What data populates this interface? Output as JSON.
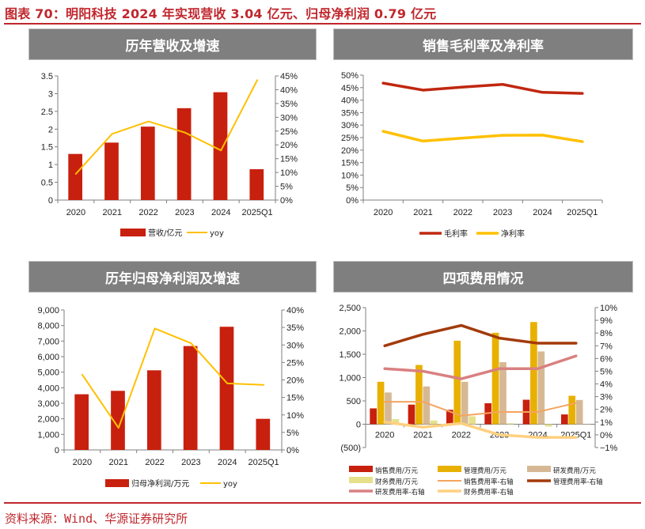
{
  "figure": {
    "title": "图表 70：明阳科技 2024 年实现营收 3.04 亿元、归母净利润 0.79 亿元",
    "source": "资料来源：Wind、华源证券研究所",
    "accent_color": "#c0272d",
    "panel_header_color": "#7f7f7f"
  },
  "panels": [
    {
      "title": "历年营收及增速"
    },
    {
      "title": "销售毛利率及净利率"
    },
    {
      "title": "历年归母净利润及增速"
    },
    {
      "title": "四项费用情况"
    }
  ],
  "chart_data": [
    {
      "type": "bar",
      "title": "历年营收及增速",
      "categories": [
        "2020",
        "2021",
        "2022",
        "2023",
        "2024",
        "2025Q1"
      ],
      "series": [
        {
          "name": "营收/亿元",
          "type": "bar",
          "axis": "left",
          "color": "#c8200e",
          "values": [
            1.3,
            1.62,
            2.07,
            2.59,
            3.04,
            0.87
          ]
        },
        {
          "name": "yoy",
          "type": "line",
          "axis": "right",
          "color": "#ffc000",
          "width": 2,
          "values": [
            0.095,
            0.24,
            0.285,
            0.245,
            0.18,
            0.435
          ]
        }
      ],
      "left_axis": {
        "min": 0,
        "max": 3.5,
        "step": 0.5,
        "ticks": [
          "0",
          "0.5",
          "1",
          "1.5",
          "2",
          "2.5",
          "3",
          "3.5"
        ]
      },
      "right_axis": {
        "min": 0,
        "max": 0.45,
        "step": 0.05,
        "ticks": [
          "0%",
          "5%",
          "10%",
          "15%",
          "20%",
          "25%",
          "30%",
          "35%",
          "40%",
          "45%"
        ]
      },
      "legend_position": "bottom"
    },
    {
      "type": "line",
      "title": "销售毛利率及净利率",
      "categories": [
        "2020",
        "2021",
        "2022",
        "2023",
        "2024",
        "2025Q1"
      ],
      "series": [
        {
          "name": "毛利率",
          "type": "line",
          "axis": "left",
          "color": "#c0270f",
          "width": 3.5,
          "values": [
            0.468,
            0.44,
            0.452,
            0.463,
            0.431,
            0.427
          ]
        },
        {
          "name": "净利率",
          "type": "line",
          "axis": "left",
          "color": "#ffc000",
          "width": 3.5,
          "values": [
            0.275,
            0.236,
            0.248,
            0.259,
            0.26,
            0.234
          ]
        }
      ],
      "left_axis": {
        "min": 0,
        "max": 0.5,
        "step": 0.05,
        "ticks": [
          "0%",
          "5%",
          "10%",
          "15%",
          "20%",
          "25%",
          "30%",
          "35%",
          "40%",
          "45%",
          "50%"
        ]
      },
      "legend_position": "bottom"
    },
    {
      "type": "bar",
      "title": "历年归母净利润及增速",
      "categories": [
        "2020",
        "2021",
        "2022",
        "2023",
        "2024",
        "2025Q1"
      ],
      "series": [
        {
          "name": "归母净利润/万元",
          "type": "bar",
          "axis": "left",
          "color": "#c8200e",
          "values": [
            3580,
            3800,
            5120,
            6680,
            7920,
            2000
          ]
        },
        {
          "name": "yoy",
          "type": "line",
          "axis": "right",
          "color": "#ffc000",
          "width": 2,
          "values": [
            0.215,
            0.063,
            0.347,
            0.305,
            0.19,
            0.186
          ]
        }
      ],
      "left_axis": {
        "min": 0,
        "max": 9000,
        "step": 1000,
        "ticks": [
          "0",
          "1,000",
          "2,000",
          "3,000",
          "4,000",
          "5,000",
          "6,000",
          "7,000",
          "8,000",
          "9,000"
        ]
      },
      "right_axis": {
        "min": 0,
        "max": 0.4,
        "step": 0.05,
        "ticks": [
          "0%",
          "5%",
          "10%",
          "15%",
          "20%",
          "25%",
          "30%",
          "35%",
          "40%"
        ]
      },
      "legend_position": "bottom"
    },
    {
      "type": "bar",
      "title": "四项费用情况",
      "categories": [
        "2020",
        "2021",
        "2022",
        "2023",
        "2024",
        "2025Q1"
      ],
      "series": [
        {
          "name": "销售费用/万元",
          "type": "bar",
          "axis": "left",
          "color": "#c8200e",
          "values": [
            340,
            420,
            310,
            450,
            525,
            210
          ]
        },
        {
          "name": "管理费用/万元",
          "type": "bar",
          "axis": "left",
          "color": "#e8b000",
          "values": [
            910,
            1270,
            1790,
            1960,
            2190,
            610
          ]
        },
        {
          "name": "研发费用/万元",
          "type": "bar",
          "axis": "left",
          "color": "#d6b994",
          "values": [
            680,
            810,
            910,
            1330,
            1560,
            520
          ]
        },
        {
          "name": "财务费用/万元",
          "type": "bar",
          "axis": "left",
          "color": "#e6e08a",
          "values": [
            110,
            80,
            170,
            20,
            -50,
            -5
          ]
        },
        {
          "name": "销售费用率-右轴",
          "type": "line",
          "axis": "right",
          "color": "#f4a460",
          "width": 2,
          "values": [
            0.026,
            0.026,
            0.015,
            0.018,
            0.018,
            0.025
          ]
        },
        {
          "name": "管理费用率-右轴",
          "type": "line",
          "axis": "right",
          "color": "#a33a0a",
          "width": 3.5,
          "values": [
            0.07,
            0.079,
            0.086,
            0.076,
            0.072,
            0.072
          ]
        },
        {
          "name": "研发费用率-右轴",
          "type": "line",
          "axis": "right",
          "color": "#d98080",
          "width": 3.5,
          "values": [
            0.052,
            0.05,
            0.044,
            0.052,
            0.052,
            0.062
          ]
        },
        {
          "name": "财务费用率-右轴",
          "type": "line",
          "axis": "right",
          "color": "#ffd080",
          "width": 3.5,
          "values": [
            0.01,
            0.006,
            0.009,
            0.0,
            -0.002,
            -0.002
          ]
        }
      ],
      "left_axis": {
        "min": -500,
        "max": 2500,
        "step": 500,
        "ticks": [
          "(500)",
          "0",
          "500",
          "1,000",
          "1,500",
          "2,000",
          "2,500"
        ]
      },
      "right_axis": {
        "min": -0.01,
        "max": 0.1,
        "step": 0.01,
        "ticks": [
          "−1%",
          "0%",
          "1%",
          "2%",
          "3%",
          "4%",
          "5%",
          "6%",
          "7%",
          "8%",
          "9%",
          "10%"
        ]
      },
      "legend_position": "bottom"
    }
  ]
}
